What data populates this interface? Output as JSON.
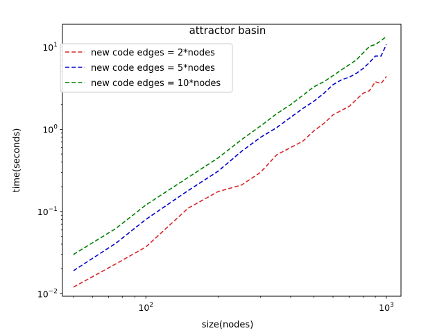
{
  "chart_data": {
    "type": "line",
    "title": "attractor basin",
    "xlabel": "size(nodes)",
    "ylabel": "time(seconds)",
    "xscale": "log",
    "yscale": "log",
    "xlim": [
      45,
      1150
    ],
    "ylim": [
      0.0093,
      19
    ],
    "grid": false,
    "legend_position": "top-left",
    "x_ticks": [
      {
        "value": 100,
        "mantissa": "10",
        "exp": "2"
      },
      {
        "value": 1000,
        "mantissa": "10",
        "exp": "3"
      }
    ],
    "y_ticks": [
      {
        "value": 0.01,
        "mantissa": "10",
        "exp": "−2"
      },
      {
        "value": 0.1,
        "mantissa": "10",
        "exp": "−1"
      },
      {
        "value": 1,
        "mantissa": "10",
        "exp": "0"
      },
      {
        "value": 10,
        "mantissa": "10",
        "exp": "1"
      }
    ],
    "series": [
      {
        "name": "new code edges = 2*nodes",
        "color": "#d62728",
        "x": [
          50,
          75,
          100,
          150,
          200,
          250,
          300,
          350,
          400,
          450,
          500,
          550,
          600,
          650,
          700,
          750,
          800,
          850,
          900,
          950,
          1000
        ],
        "y": [
          0.012,
          0.023,
          0.037,
          0.11,
          0.175,
          0.21,
          0.3,
          0.49,
          0.6,
          0.72,
          0.96,
          1.18,
          1.5,
          1.7,
          1.9,
          2.3,
          2.75,
          2.95,
          3.8,
          3.6,
          4.4
        ]
      },
      {
        "name": "new code edges = 5*nodes",
        "color": "#0000cc",
        "x": [
          50,
          75,
          100,
          150,
          200,
          250,
          300,
          350,
          400,
          450,
          500,
          550,
          600,
          650,
          700,
          750,
          800,
          850,
          900,
          950,
          1000
        ],
        "y": [
          0.019,
          0.041,
          0.08,
          0.18,
          0.31,
          0.54,
          0.8,
          1.05,
          1.4,
          1.8,
          2.2,
          2.75,
          3.5,
          4.0,
          4.3,
          4.8,
          5.5,
          6.5,
          7.8,
          7.8,
          10.8
        ]
      },
      {
        "name": "new code edges = 10*nodes",
        "color": "#008000",
        "x": [
          50,
          75,
          100,
          150,
          200,
          250,
          300,
          350,
          400,
          450,
          500,
          550,
          600,
          650,
          700,
          750,
          800,
          850,
          900,
          950,
          1000
        ],
        "y": [
          0.03,
          0.062,
          0.12,
          0.26,
          0.45,
          0.75,
          1.1,
          1.55,
          2.0,
          2.6,
          3.3,
          3.8,
          4.5,
          5.3,
          6.1,
          7.0,
          8.5,
          10.2,
          10.8,
          12.0,
          13.5
        ]
      }
    ]
  }
}
